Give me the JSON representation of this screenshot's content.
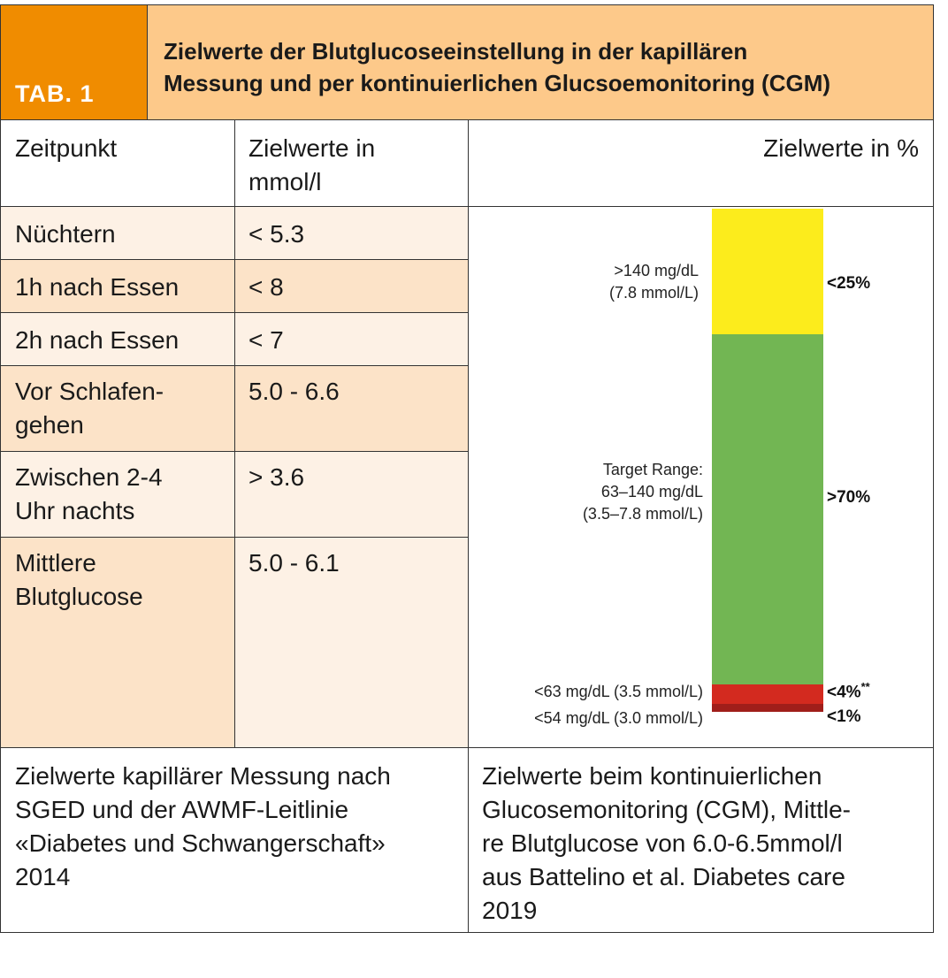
{
  "header": {
    "tag": "TAB. 1",
    "title_line1": "Zielwerte der Blutglucoseeinstellung in der kapillären",
    "title_line2": "Messung und per kontinuierlichen Glucsoemonitoring (CGM)"
  },
  "columns": {
    "time": "Zeitpunkt",
    "target_line1": "Zielwerte in",
    "target_line2": "mmol/l",
    "percent": "Zielwerte in %"
  },
  "rows": [
    {
      "time": "Nüchtern",
      "value": "< 5.3"
    },
    {
      "time": "1h nach Essen",
      "value": "< 8"
    },
    {
      "time": "2h nach Essen",
      "value": "< 7"
    },
    {
      "time_line1": "Vor Schlafen-",
      "time_line2": "gehen",
      "value": "5.0 - 6.6"
    },
    {
      "time_line1": "Zwischen 2-4",
      "time_line2": "Uhr nachts",
      "value": "> 3.6"
    },
    {
      "time_line1": "Mittlere",
      "time_line2": "Blutglucose",
      "value": "5.0 - 6.1"
    }
  ],
  "cgm": {
    "high_label_line1": ">140 mg/dL",
    "high_label_line2": "(7.8 mmol/L)",
    "high_pct": "<25%",
    "target_label_line1": "Target Range:",
    "target_label_line2": "63–140 mg/dL",
    "target_label_line3": "(3.5–7.8 mmol/L)",
    "target_pct": ">70%",
    "low_label": "<63 mg/dL (3.5 mmol/L)",
    "low_pct": "<4%",
    "low_pct_mark": "**",
    "vlow_label": "<54 mg/dL (3.0 mmol/L)",
    "vlow_pct": "<1%",
    "colors": {
      "high": "#fcec1c",
      "target": "#72b653",
      "low": "#d32a1f",
      "vlow": "#a01e1a"
    }
  },
  "footer": {
    "left_lines": [
      "Zielwerte kapillärer Messung nach",
      "SGED und der AWMF-Leitlinie",
      "«Diabetes und Schwangerschaft»",
      "2014"
    ],
    "right_lines": [
      "Zielwerte beim kontinuierlichen",
      "Glucosemonitoring (CGM), Mittle-",
      "re Blutglucose von 6.0-6.5mmol/l",
      "aus Battelino et al. Diabetes care",
      "2019"
    ]
  }
}
